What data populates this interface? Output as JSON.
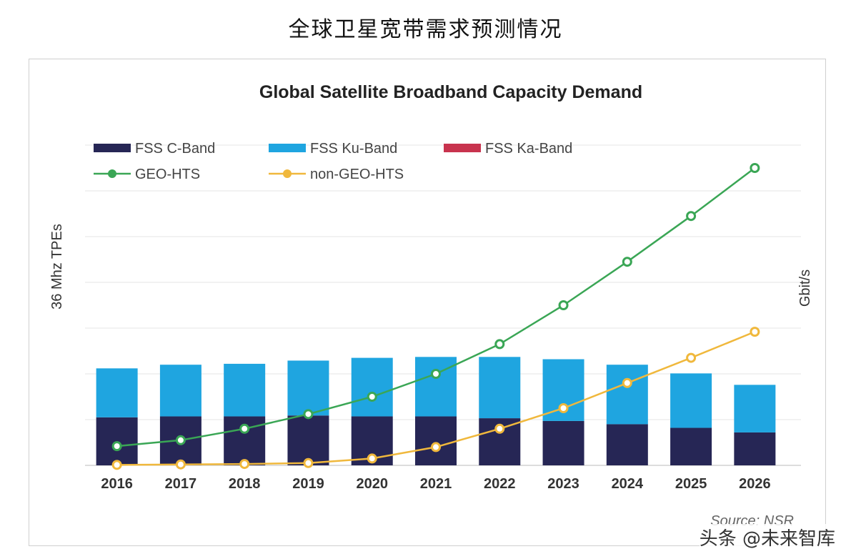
{
  "page_title": "全球卫星宽带需求预测情况",
  "watermark": "头条 @未来智库",
  "chart_data": {
    "type": "bar",
    "title": "Global Satellite Broadband Capacity Demand",
    "ylabel_left": "36 Mhz  TPEs",
    "ylabel_right": "Gbit/s",
    "source": "Source: NSR",
    "categories": [
      "2016",
      "2017",
      "2018",
      "2019",
      "2020",
      "2021",
      "2022",
      "2023",
      "2024",
      "2025",
      "2026"
    ],
    "bar_ylim": [
      0,
      7
    ],
    "line_ylim": [
      0,
      7
    ],
    "grid": true,
    "legend_position": "top-left",
    "series": [
      {
        "name": "FSS C-Band",
        "kind": "bar",
        "color": "#262655",
        "values": [
          1.05,
          1.07,
          1.07,
          1.09,
          1.07,
          1.07,
          1.03,
          0.97,
          0.9,
          0.82,
          0.72
        ]
      },
      {
        "name": "FSS Ku-Band",
        "kind": "bar",
        "color": "#1fa5e0",
        "values": [
          1.07,
          1.13,
          1.15,
          1.2,
          1.28,
          1.3,
          1.34,
          1.35,
          1.3,
          1.19,
          1.04
        ]
      },
      {
        "name": "FSS Ka-Band",
        "kind": "bar",
        "color": "#c8334e",
        "values": [
          0,
          0,
          0,
          0,
          0,
          0,
          0,
          0,
          0,
          0,
          0
        ]
      },
      {
        "name": "GEO-HTS",
        "kind": "line",
        "color": "#3aa655",
        "values": [
          0.42,
          0.55,
          0.8,
          1.12,
          1.5,
          2.0,
          2.65,
          3.5,
          4.45,
          5.45,
          6.5
        ]
      },
      {
        "name": "non-GEO-HTS",
        "kind": "line",
        "color": "#f0b83c",
        "values": [
          0.01,
          0.02,
          0.03,
          0.05,
          0.15,
          0.4,
          0.8,
          1.25,
          1.8,
          2.35,
          2.92
        ]
      }
    ]
  }
}
